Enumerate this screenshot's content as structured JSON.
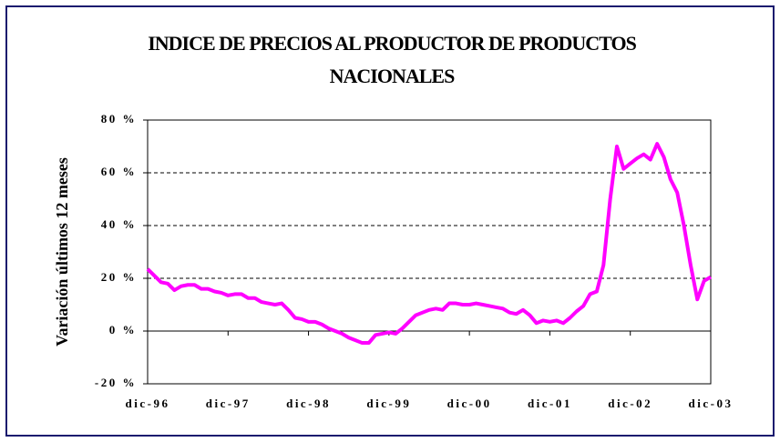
{
  "chart_data": {
    "type": "line",
    "title": "INDICE DE PRECIOS AL PRODUCTOR DE PRODUCTOS NACIONALES",
    "y_label": "Variación últimos 12 meses",
    "categories": [
      "dic-96",
      null,
      null,
      null,
      null,
      null,
      null,
      null,
      null,
      null,
      null,
      null,
      "dic-97",
      null,
      null,
      null,
      null,
      null,
      null,
      null,
      null,
      null,
      null,
      null,
      "dic-98",
      null,
      null,
      null,
      null,
      null,
      null,
      null,
      null,
      null,
      null,
      null,
      "dic-99",
      null,
      null,
      null,
      null,
      null,
      null,
      null,
      null,
      null,
      null,
      null,
      "dic-00",
      null,
      null,
      null,
      null,
      null,
      null,
      null,
      null,
      null,
      null,
      null,
      "dic-01",
      null,
      null,
      null,
      null,
      null,
      null,
      null,
      null,
      null,
      null,
      null,
      "dic-02",
      null,
      null,
      null,
      null,
      null,
      null,
      null,
      null,
      null,
      null,
      null,
      "dic-03"
    ],
    "series": [
      {
        "color": "#ff00ff",
        "values": [
          23.5,
          21,
          18.5,
          18,
          15.5,
          17,
          17.5,
          17.5,
          16,
          16,
          15,
          14.5,
          13.5,
          14,
          14,
          12.5,
          12.5,
          11,
          10.5,
          10,
          10.5,
          8,
          5,
          4.5,
          3.5,
          3.5,
          2.5,
          1,
          0,
          -1,
          -2.5,
          -3.5,
          -4.5,
          -4.5,
          -1.5,
          -1,
          -0.5,
          -1,
          1,
          3.5,
          6,
          7,
          8,
          8.5,
          8,
          10.5,
          10.5,
          10,
          10,
          10.5,
          10,
          9.5,
          9,
          8.5,
          7,
          6.5,
          8,
          6,
          3,
          4,
          3.5,
          4,
          3,
          5,
          7.5,
          9.5,
          14,
          15,
          25,
          50,
          70,
          61.5,
          63.5,
          65.5,
          67,
          65,
          71,
          66,
          57.5,
          52.5,
          40,
          25,
          12,
          19,
          20.5
        ]
      }
    ],
    "ylim": [
      -20,
      80
    ],
    "yticks": [
      {
        "value": -20,
        "label": "-20 %"
      },
      {
        "value": 0,
        "label": "0 %"
      },
      {
        "value": 20,
        "label": "20 %"
      },
      {
        "value": 40,
        "label": "40 %"
      },
      {
        "value": 60,
        "label": "60 %"
      },
      {
        "value": 80,
        "label": "80 %"
      }
    ],
    "grid": true
  }
}
